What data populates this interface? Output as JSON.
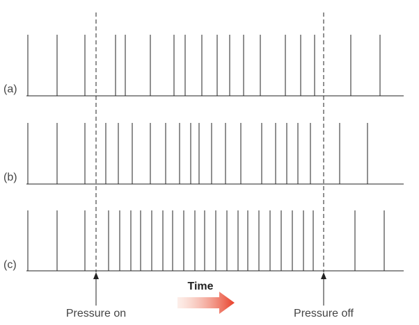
{
  "rows": [
    {
      "label": "(a)"
    },
    {
      "label": "(b)"
    },
    {
      "label": "(c)"
    }
  ],
  "time_label": "Time",
  "markers": [
    {
      "label": "Pressure on"
    },
    {
      "label": "Pressure off"
    }
  ]
}
